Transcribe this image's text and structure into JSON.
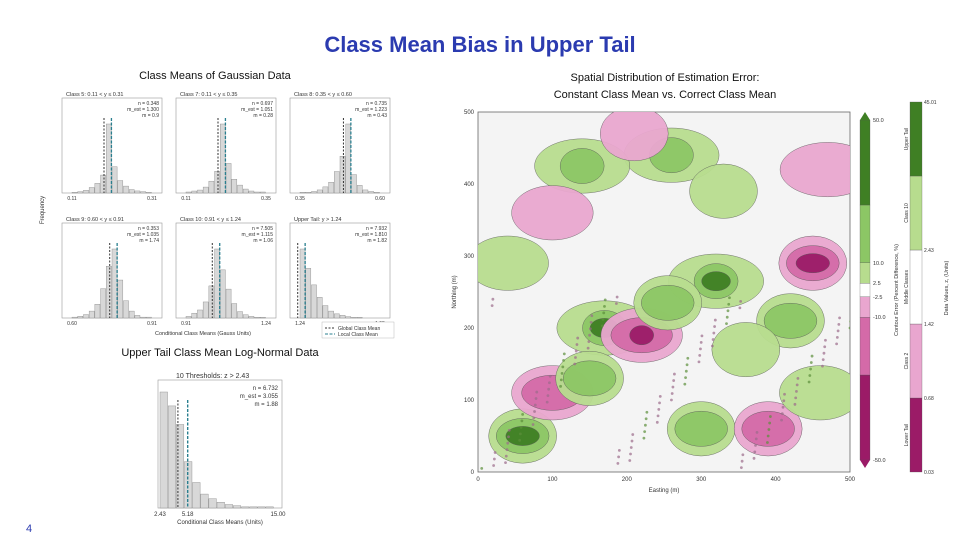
{
  "slide": {
    "title": "Class Mean Bias in Upper Tail",
    "left_caption": "Class Means of Gaussian Data",
    "right_caption_line1": "Spatial Distribution of Estimation Error:",
    "right_caption_line2": "Constant Class Mean vs. Correct Class Mean",
    "lower_caption": "Upper Tail Class Mean Log-Normal Data",
    "slide_number": "4"
  },
  "colors": {
    "title": "#2b3bb0",
    "bar": "#d8d8d8",
    "global_mean_line": "#333333",
    "local_mean_line": "#2a7f8f",
    "positive_dark": "#3f7f24",
    "positive_light": "#b7dc8e",
    "negative_dark": "#9b1b67",
    "negative_light": "#e9a6cf",
    "neutral": "#f4f4f4"
  },
  "chart_data": [
    {
      "type": "bar",
      "title": "Class Means of Gaussian Data",
      "panels": [
        {
          "title": "Class 5: 0.11 < y ≤ 0.31",
          "stats": [
            "n = 0.348",
            "m_est = 1.300",
            "m = 0.9"
          ],
          "x_ticks": [
            "0.11",
            "0.31"
          ],
          "values": [
            1,
            2,
            4,
            8,
            14,
            26,
            100,
            38,
            18,
            10,
            5,
            3,
            2,
            1
          ]
        },
        {
          "title": "Class 7: 0.11 < y ≤ 0.35",
          "stats": [
            "n = 0.697",
            "m_est = 1.051",
            "m = 0.28"
          ],
          "x_ticks": [
            "0.11",
            "0.35"
          ],
          "values": [
            1,
            2,
            3,
            6,
            12,
            22,
            70,
            30,
            14,
            8,
            4,
            2,
            1,
            1
          ]
        },
        {
          "title": "Class 8: 0.35 < y ≤ 0.60",
          "stats": [
            "n = 0.735",
            "m_est = 1.223",
            "m = 0.43"
          ],
          "x_ticks": [
            "0.35",
            "0.60"
          ],
          "values": [
            1,
            1,
            2,
            4,
            8,
            14,
            28,
            48,
            90,
            24,
            10,
            4,
            2,
            1
          ]
        },
        {
          "title": "Class 9: 0.60 < y ≤ 0.91",
          "stats": [
            "n = 0.353",
            "m_est = 1.035",
            "m = 1.74"
          ],
          "x_ticks": [
            "0.60",
            "0.91"
          ],
          "values": [
            1,
            2,
            4,
            8,
            16,
            34,
            60,
            80,
            44,
            20,
            8,
            3,
            1,
            1
          ]
        },
        {
          "title": "Class 10: 0.91 < y ≤ 1.24",
          "stats": [
            "n = 7.505",
            "m_est = 1.115",
            "m = 1.06"
          ],
          "x_ticks": [
            "0.91",
            "1.24"
          ],
          "values": [
            2,
            6,
            10,
            20,
            40,
            86,
            60,
            36,
            18,
            8,
            4,
            2,
            1,
            1
          ]
        },
        {
          "title": "Upper Tail: y > 1.24",
          "stats": [
            "n = 7.932",
            "m_est = 1.810",
            "m = 1.82"
          ],
          "x_ticks": [
            "1.24",
            "1.95"
          ],
          "values": [
            100,
            72,
            48,
            30,
            18,
            10,
            6,
            4,
            2,
            1,
            1,
            0,
            0,
            0
          ]
        }
      ],
      "xlabel": "Conditional Class Means (Gauss Units)",
      "ylabel": "Frequency",
      "legend": [
        "Global Class Mean",
        "Local Class Mean"
      ],
      "legend_placement": "bottom-right"
    },
    {
      "type": "bar",
      "title": "Upper Tail Class Mean Log-Normal Data",
      "panel_title": "10 Thresholds: z > 2.43",
      "stats": [
        "n = 6.732",
        "m_est = 3.055",
        "m = 1.88"
      ],
      "x_ticks": [
        "2.43",
        "5.18",
        "15.00"
      ],
      "xlabel": "Conditional Class Means (Units)",
      "values": [
        100,
        88,
        72,
        40,
        22,
        12,
        8,
        5,
        3,
        2,
        1,
        1,
        1,
        1
      ]
    },
    {
      "type": "heatmap",
      "title": "Spatial Distribution of Estimation Error: Constant Class Mean vs. Correct Class Mean",
      "xlabel": "Easting (m)",
      "ylabel": "Northing (m)",
      "x_ticks": [
        0,
        100,
        200,
        300,
        400,
        500
      ],
      "y_ticks": [
        0,
        100,
        200,
        300,
        400,
        500
      ],
      "xlim": [
        0,
        500
      ],
      "ylim": [
        0,
        500
      ],
      "colorbar": {
        "label": "Contour Error (Percent Difference, %)",
        "ticks": [
          -50.0,
          -10.0,
          -2.5,
          2.5,
          10.0,
          50.0
        ]
      },
      "class_bar": {
        "label": "Data Values, z, (Units)",
        "ticks": [
          0.03,
          0.68,
          1.42,
          2.43,
          45.01
        ],
        "classes": [
          "Lower Tail",
          "Class 2",
          "Middle Classes",
          "Class 10",
          "Upper Tail"
        ]
      },
      "blobs": [
        {
          "x": 450,
          "y": 290,
          "sign": "neg",
          "level": 3
        },
        {
          "x": 320,
          "y": 265,
          "sign": "pos",
          "level": 3
        },
        {
          "x": 170,
          "y": 200,
          "sign": "pos",
          "level": 3
        },
        {
          "x": 220,
          "y": 190,
          "sign": "neg",
          "level": 3
        },
        {
          "x": 255,
          "y": 235,
          "sign": "pos",
          "level": 2
        },
        {
          "x": 60,
          "y": 50,
          "sign": "pos",
          "level": 3
        },
        {
          "x": 100,
          "y": 110,
          "sign": "neg",
          "level": 2
        },
        {
          "x": 150,
          "y": 130,
          "sign": "pos",
          "level": 2
        },
        {
          "x": 300,
          "y": 60,
          "sign": "pos",
          "level": 2
        },
        {
          "x": 390,
          "y": 60,
          "sign": "neg",
          "level": 2
        },
        {
          "x": 260,
          "y": 440,
          "sign": "pos",
          "level": 2
        },
        {
          "x": 140,
          "y": 425,
          "sign": "pos",
          "level": 2
        },
        {
          "x": 100,
          "y": 360,
          "sign": "neg",
          "level": 1
        },
        {
          "x": 210,
          "y": 470,
          "sign": "neg",
          "level": 1
        },
        {
          "x": 420,
          "y": 210,
          "sign": "pos",
          "level": 2
        },
        {
          "x": 360,
          "y": 170,
          "sign": "pos",
          "level": 1
        },
        {
          "x": 40,
          "y": 290,
          "sign": "pos",
          "level": 1
        },
        {
          "x": 460,
          "y": 110,
          "sign": "pos",
          "level": 1
        },
        {
          "x": 330,
          "y": 390,
          "sign": "pos",
          "level": 1
        },
        {
          "x": 470,
          "y": 420,
          "sign": "neg",
          "level": 1
        }
      ]
    }
  ]
}
